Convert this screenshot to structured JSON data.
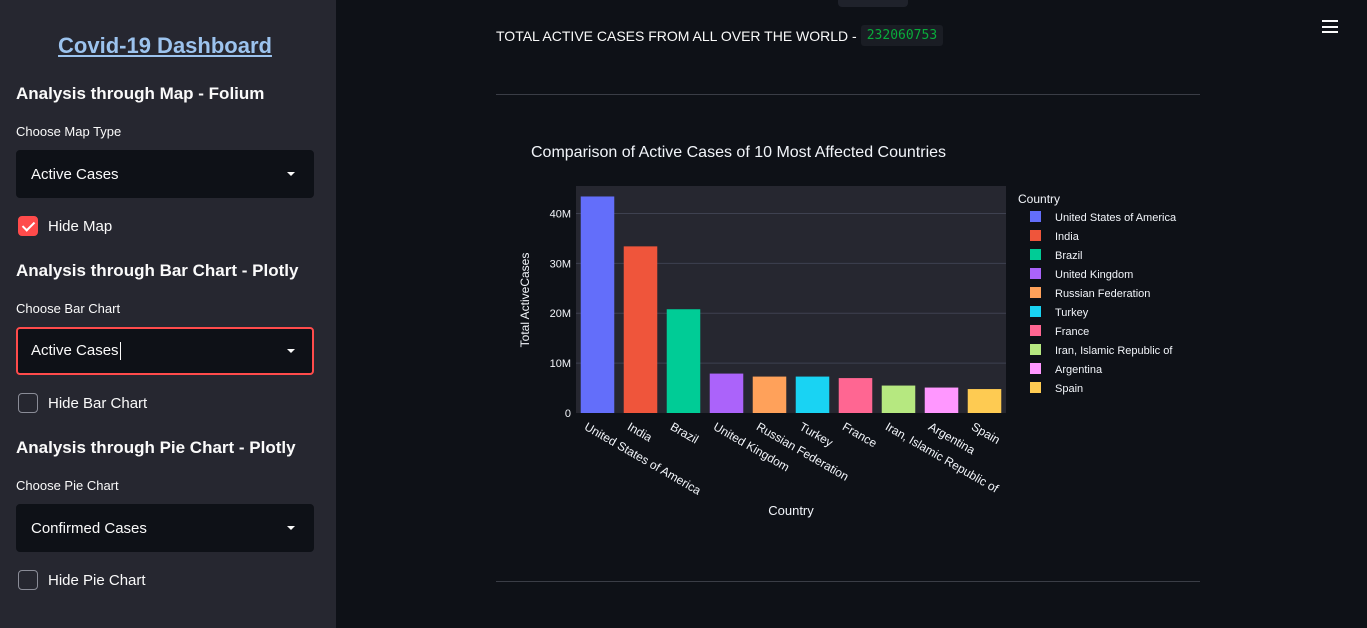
{
  "sidebar": {
    "app_title": "Covid-19 Dashboard",
    "map_section": {
      "heading": "Analysis through Map - Folium",
      "select_label": "Choose Map Type",
      "select_value": "Active Cases",
      "checkbox_label": "Hide Map",
      "checkbox_checked": true
    },
    "bar_section": {
      "heading": "Analysis through Bar Chart - Plotly",
      "select_label": "Choose Bar Chart",
      "select_value": "Active Cases",
      "checkbox_label": "Hide Bar Chart",
      "checkbox_checked": false
    },
    "pie_section": {
      "heading": "Analysis through Pie Chart - Plotly",
      "select_label": "Choose Pie Chart",
      "select_value": "Confirmed Cases",
      "checkbox_label": "Hide Pie Chart",
      "checkbox_checked": false
    }
  },
  "main": {
    "total_label": "TOTAL ACTIVE CASES FROM ALL OVER THE WORLD -",
    "total_value": "232060753",
    "menu_icon": "hamburger-menu-icon"
  },
  "colors": {
    "accent": "#ff4b4b",
    "title_link": "#9cc3ee",
    "total_value": "#09ab3b"
  },
  "chart_data": {
    "type": "bar",
    "title": "Comparison of Active Cases of 10 Most Affected Countries",
    "xlabel": "Country",
    "ylabel": "Total ActiveCases",
    "legend_title": "Country",
    "legend_position": "right",
    "ylim": [
      0,
      45500000
    ],
    "yticks": [
      0,
      10000000,
      20000000,
      30000000,
      40000000
    ],
    "ytick_labels": [
      "0",
      "10M",
      "20M",
      "30M",
      "40M"
    ],
    "grid": true,
    "categories": [
      "United States of America",
      "India",
      "Brazil",
      "United Kingdom",
      "Russian Federation",
      "Turkey",
      "France",
      "Iran, Islamic Republic of",
      "Argentina",
      "Spain"
    ],
    "values": [
      43400000,
      33400000,
      20800000,
      7900000,
      7300000,
      7300000,
      7000000,
      5500000,
      5100000,
      4800000
    ],
    "colors": [
      "#636efa",
      "#ef553b",
      "#00cc96",
      "#ab63fa",
      "#ffa15a",
      "#19d3f3",
      "#ff6692",
      "#b6e880",
      "#ff97ff",
      "#fecb52"
    ]
  }
}
